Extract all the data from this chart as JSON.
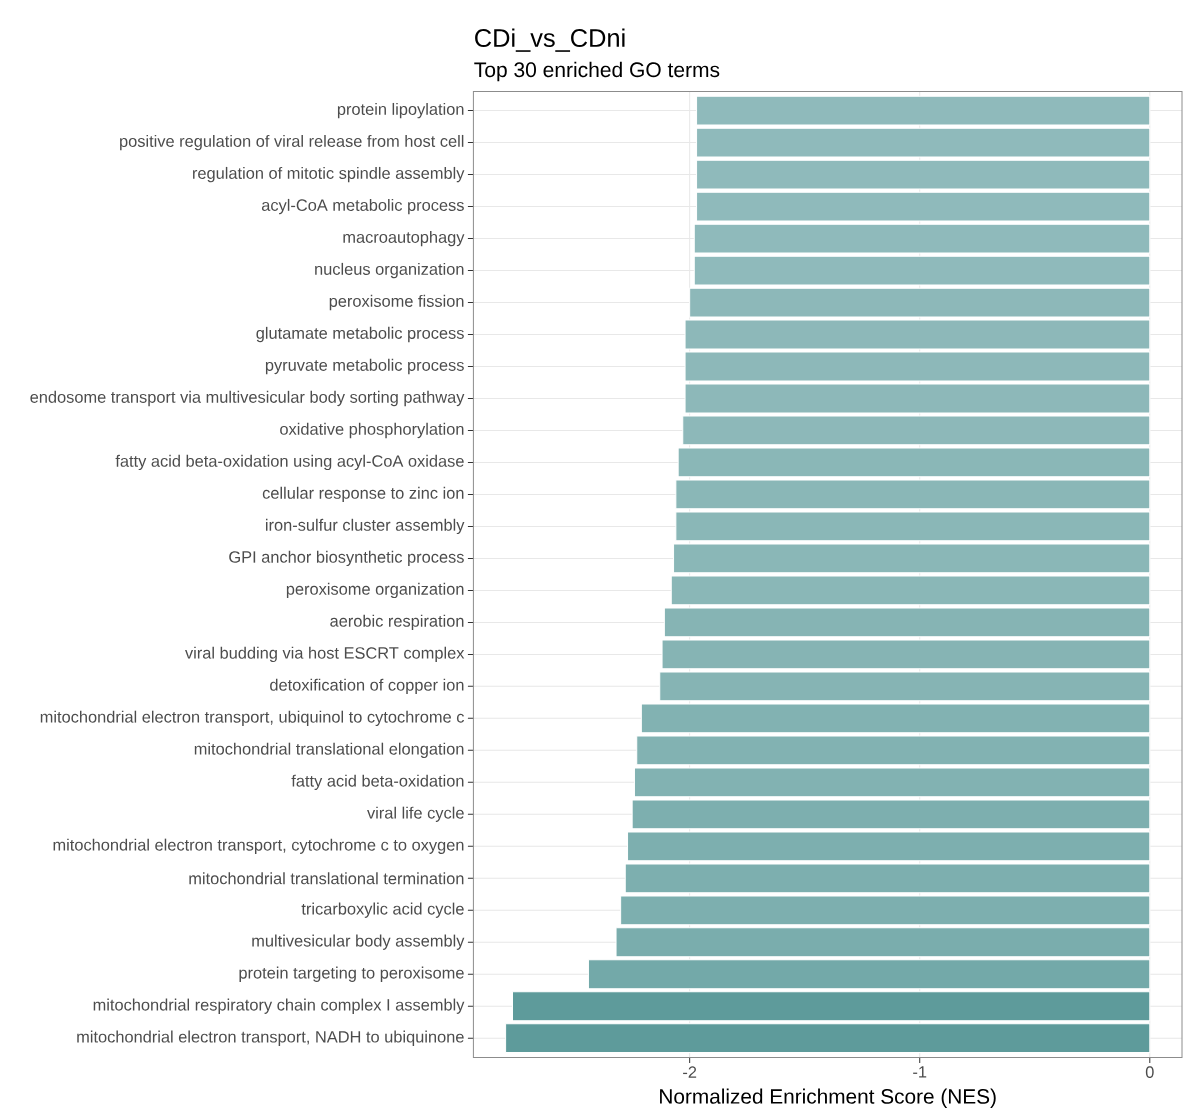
{
  "chart_data": {
    "type": "bar",
    "orientation": "horizontal",
    "title": "CDi_vs_CDni",
    "subtitle": "Top 30 enriched GO terms",
    "xlabel": "Normalized Enrichment Score (NES)",
    "categories": [
      "protein lipoylation",
      "positive regulation of viral release from host cell",
      "regulation of mitotic spindle assembly",
      "acyl-CoA metabolic process",
      "macroautophagy",
      "nucleus organization",
      "peroxisome fission",
      "glutamate metabolic process",
      "pyruvate metabolic process",
      "endosome transport via multivesicular body sorting pathway",
      "oxidative phosphorylation",
      "fatty acid beta-oxidation using acyl-CoA oxidase",
      "cellular response to zinc ion",
      "iron-sulfur cluster assembly",
      "GPI anchor biosynthetic process",
      "peroxisome organization",
      "aerobic respiration",
      "viral budding via host ESCRT complex",
      "detoxification of copper ion",
      "mitochondrial electron transport, ubiquinol to cytochrome c",
      "mitochondrial translational elongation",
      "fatty acid beta-oxidation",
      "viral life cycle",
      "mitochondrial electron transport, cytochrome c to oxygen",
      "mitochondrial translational termination",
      "tricarboxylic acid cycle",
      "multivesicular body assembly",
      "protein targeting to peroxisome",
      "mitochondrial respiratory chain complex I assembly",
      "mitochondrial electron transport, NADH to ubiquinone"
    ],
    "values": [
      -1.97,
      -1.97,
      -1.97,
      -1.97,
      -1.98,
      -1.98,
      -2.0,
      -2.02,
      -2.02,
      -2.02,
      -2.03,
      -2.05,
      -2.06,
      -2.06,
      -2.07,
      -2.08,
      -2.11,
      -2.12,
      -2.13,
      -2.21,
      -2.23,
      -2.24,
      -2.25,
      -2.27,
      -2.28,
      -2.3,
      -2.32,
      -2.44,
      -2.77,
      -2.8
    ],
    "colors": [
      "#8fbabb",
      "#8fbabb",
      "#8fbabb",
      "#8fbabb",
      "#8fbabb",
      "#8fbabb",
      "#8db8b9",
      "#8db8b9",
      "#8db8b9",
      "#8db8b9",
      "#8db8b9",
      "#8ab7b7",
      "#8ab7b7",
      "#8ab7b7",
      "#8ab7b7",
      "#8ab7b7",
      "#86b4b4",
      "#86b4b4",
      "#86b4b4",
      "#82b2b2",
      "#82b2b2",
      "#82b2b2",
      "#7dafaf",
      "#7dafaf",
      "#7dafaf",
      "#7dafaf",
      "#7aadad",
      "#73a9a9",
      "#5e9b9b",
      "#5e9b9b"
    ],
    "xlim": [
      -2.94,
      0.14
    ],
    "xticks": [
      -2,
      -1,
      0
    ],
    "grid": true
  }
}
